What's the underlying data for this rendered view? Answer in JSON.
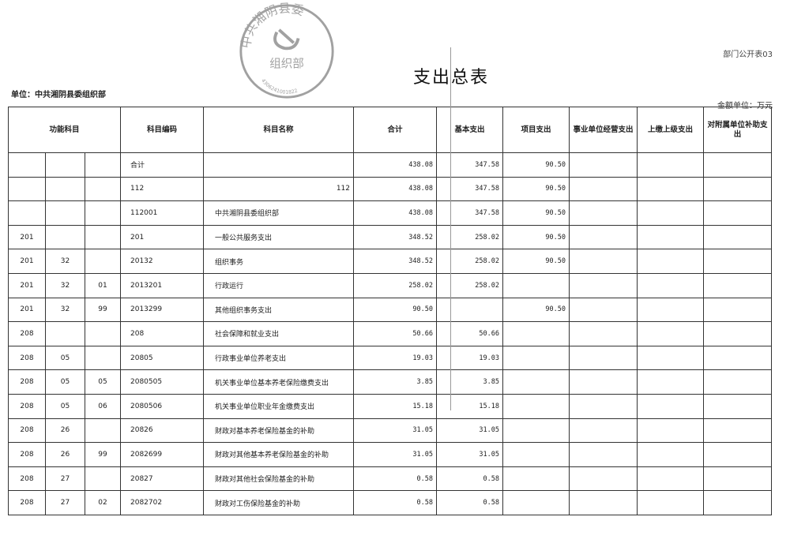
{
  "form_no": "部门公开表03",
  "title": "支出总表",
  "unit_label": "单位：中共湘阴县委组织部",
  "money_unit": "金额单位：万元",
  "seal": {
    "text": "中共湘阴县委组织部",
    "number": "4306241001822"
  },
  "headers": [
    "功能科目",
    "科目编码",
    "科目名称",
    "合计",
    "基本支出",
    "项目支出",
    "事业单位经营支出",
    "上缴上级支出",
    "对附属单位补助支出"
  ],
  "rows": [
    {
      "c1": "",
      "c2": "",
      "c3": "",
      "code": "合计",
      "name": "",
      "total": "438.08",
      "basic": "347.58",
      "project": "90.50"
    },
    {
      "c1": "",
      "c2": "",
      "c3": "",
      "code": "112",
      "name": "112",
      "total": "438.08",
      "basic": "347.58",
      "project": "90.50"
    },
    {
      "c1": "",
      "c2": "",
      "c3": "",
      "code": "112001",
      "name": "中共湘阴县委组织部",
      "total": "438.08",
      "basic": "347.58",
      "project": "90.50"
    },
    {
      "c1": "201",
      "c2": "",
      "c3": "",
      "code": "201",
      "name": "一般公共服务支出",
      "total": "348.52",
      "basic": "258.02",
      "project": "90.50"
    },
    {
      "c1": "201",
      "c2": "32",
      "c3": "",
      "code": "20132",
      "name": "组织事务",
      "total": "348.52",
      "basic": "258.02",
      "project": "90.50"
    },
    {
      "c1": "201",
      "c2": "32",
      "c3": "01",
      "code": "2013201",
      "name": "行政运行",
      "total": "258.02",
      "basic": "258.02",
      "project": ""
    },
    {
      "c1": "201",
      "c2": "32",
      "c3": "99",
      "code": "2013299",
      "name": "其他组织事务支出",
      "total": "90.50",
      "basic": "",
      "project": "90.50"
    },
    {
      "c1": "208",
      "c2": "",
      "c3": "",
      "code": "208",
      "name": "社会保障和就业支出",
      "total": "50.66",
      "basic": "50.66",
      "project": ""
    },
    {
      "c1": "208",
      "c2": "05",
      "c3": "",
      "code": "20805",
      "name": "行政事业单位养老支出",
      "total": "19.03",
      "basic": "19.03",
      "project": ""
    },
    {
      "c1": "208",
      "c2": "05",
      "c3": "05",
      "code": "2080505",
      "name": "机关事业单位基本养老保险缴费支出",
      "total": "3.85",
      "basic": "3.85",
      "project": ""
    },
    {
      "c1": "208",
      "c2": "05",
      "c3": "06",
      "code": "2080506",
      "name": "机关事业单位职业年金缴费支出",
      "total": "15.18",
      "basic": "15.18",
      "project": ""
    },
    {
      "c1": "208",
      "c2": "26",
      "c3": "",
      "code": "20826",
      "name": "财政对基本养老保险基金的补助",
      "total": "31.05",
      "basic": "31.05",
      "project": ""
    },
    {
      "c1": "208",
      "c2": "26",
      "c3": "99",
      "code": "2082699",
      "name": "财政对其他基本养老保险基金的补助",
      "total": "31.05",
      "basic": "31.05",
      "project": ""
    },
    {
      "c1": "208",
      "c2": "27",
      "c3": "",
      "code": "20827",
      "name": "财政对其他社会保险基金的补助",
      "total": "0.58",
      "basic": "0.58",
      "project": ""
    },
    {
      "c1": "208",
      "c2": "27",
      "c3": "02",
      "code": "2082702",
      "name": "财政对工伤保险基金的补助",
      "total": "0.58",
      "basic": "0.58",
      "project": ""
    }
  ]
}
